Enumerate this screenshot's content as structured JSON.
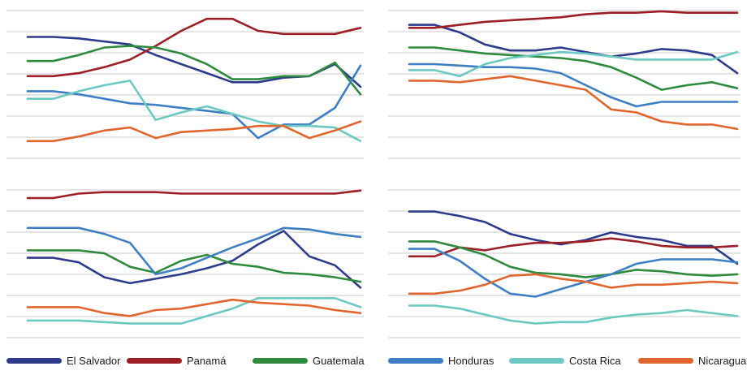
{
  "chart_data": [
    {
      "type": "line",
      "panel": "top-left",
      "ylim": [
        0,
        10
      ],
      "grid": true,
      "x": [
        1,
        2,
        3,
        4,
        5,
        6,
        7,
        8,
        9,
        10,
        11,
        12,
        13,
        14
      ],
      "series": [
        {
          "name": "El Salvador",
          "values": [
            8.2,
            8.2,
            8.1,
            7.9,
            7.7,
            7.0,
            6.4,
            5.8,
            5.2,
            5.2,
            5.5,
            5.6,
            6.4,
            4.9
          ]
        },
        {
          "name": "Panamá",
          "values": [
            5.6,
            5.6,
            5.8,
            6.2,
            6.7,
            7.6,
            8.6,
            9.4,
            9.4,
            8.6,
            8.4,
            8.4,
            8.4,
            8.8
          ]
        },
        {
          "name": "Guatemala",
          "values": [
            6.6,
            6.6,
            7.0,
            7.5,
            7.6,
            7.5,
            7.1,
            6.4,
            5.4,
            5.4,
            5.6,
            5.6,
            6.5,
            4.4
          ]
        },
        {
          "name": "Honduras",
          "values": [
            4.6,
            4.6,
            4.4,
            4.1,
            3.8,
            3.7,
            3.5,
            3.3,
            3.1,
            1.5,
            2.4,
            2.4,
            3.5,
            6.3
          ]
        },
        {
          "name": "Costa Rica",
          "values": [
            4.1,
            4.1,
            4.6,
            5.0,
            5.3,
            2.7,
            3.2,
            3.6,
            3.1,
            2.6,
            2.3,
            2.3,
            2.2,
            1.3
          ]
        },
        {
          "name": "Nicaragua",
          "values": [
            1.3,
            1.3,
            1.6,
            2.0,
            2.2,
            1.5,
            1.9,
            2.0,
            2.1,
            2.3,
            2.3,
            1.5,
            2.0,
            2.6
          ]
        }
      ]
    },
    {
      "type": "line",
      "panel": "top-right",
      "ylim": [
        0,
        10
      ],
      "grid": true,
      "x": [
        1,
        2,
        3,
        4,
        5,
        6,
        7,
        8,
        9,
        10,
        11,
        12,
        13,
        14
      ],
      "series": [
        {
          "name": "El Salvador",
          "values": [
            9.0,
            9.0,
            8.5,
            7.7,
            7.3,
            7.3,
            7.5,
            7.2,
            6.9,
            7.1,
            7.4,
            7.3,
            7.0,
            5.8
          ]
        },
        {
          "name": "Panamá",
          "values": [
            8.8,
            8.8,
            9.0,
            9.2,
            9.3,
            9.4,
            9.5,
            9.7,
            9.8,
            9.8,
            9.9,
            9.8,
            9.8,
            9.8
          ]
        },
        {
          "name": "Guatemala",
          "values": [
            7.5,
            7.5,
            7.3,
            7.1,
            7.0,
            6.9,
            6.8,
            6.6,
            6.2,
            5.5,
            4.7,
            5.0,
            5.2,
            4.8
          ]
        },
        {
          "name": "Honduras",
          "values": [
            6.4,
            6.4,
            6.3,
            6.2,
            6.2,
            6.1,
            5.8,
            5.0,
            4.2,
            3.6,
            3.9,
            3.9,
            3.9,
            3.9
          ]
        },
        {
          "name": "Costa Rica",
          "values": [
            6.0,
            6.0,
            5.6,
            6.4,
            6.8,
            7.0,
            7.2,
            7.1,
            6.9,
            6.7,
            6.7,
            6.7,
            6.7,
            7.2
          ]
        },
        {
          "name": "Nicaragua",
          "values": [
            5.3,
            5.3,
            5.2,
            5.4,
            5.6,
            5.3,
            5.0,
            4.7,
            3.4,
            3.2,
            2.6,
            2.4,
            2.4,
            2.1
          ]
        }
      ]
    },
    {
      "type": "line",
      "panel": "bottom-left",
      "ylim": [
        0,
        10
      ],
      "grid": true,
      "x": [
        1,
        2,
        3,
        4,
        5,
        6,
        7,
        8,
        9,
        10,
        11,
        12,
        13,
        14
      ],
      "series": [
        {
          "name": "El Salvador",
          "values": [
            5.4,
            5.4,
            5.1,
            4.1,
            3.7,
            4.0,
            4.3,
            4.7,
            5.2,
            6.3,
            7.2,
            5.5,
            4.9,
            3.4
          ]
        },
        {
          "name": "Panamá",
          "values": [
            9.4,
            9.4,
            9.7,
            9.8,
            9.8,
            9.8,
            9.7,
            9.7,
            9.7,
            9.7,
            9.7,
            9.7,
            9.7,
            9.9
          ]
        },
        {
          "name": "Guatemala",
          "values": [
            5.9,
            5.9,
            5.9,
            5.7,
            4.8,
            4.4,
            5.2,
            5.6,
            5.0,
            4.8,
            4.4,
            4.3,
            4.1,
            3.8
          ]
        },
        {
          "name": "Honduras",
          "values": [
            7.4,
            7.4,
            7.4,
            7.0,
            6.4,
            4.3,
            4.7,
            5.4,
            6.1,
            6.7,
            7.4,
            7.3,
            7.0,
            6.8
          ]
        },
        {
          "name": "Costa Rica",
          "values": [
            1.2,
            1.2,
            1.2,
            1.1,
            1.0,
            1.0,
            1.0,
            1.5,
            2.0,
            2.7,
            2.7,
            2.7,
            2.7,
            2.1
          ]
        },
        {
          "name": "Nicaragua",
          "values": [
            2.1,
            2.1,
            2.1,
            1.7,
            1.5,
            1.9,
            2.0,
            2.3,
            2.6,
            2.4,
            2.3,
            2.2,
            1.9,
            1.7
          ]
        }
      ]
    },
    {
      "type": "line",
      "panel": "bottom-right",
      "ylim": [
        0,
        10
      ],
      "grid": true,
      "x": [
        1,
        2,
        3,
        4,
        5,
        6,
        7,
        8,
        9,
        10,
        11,
        12,
        13,
        14
      ],
      "series": [
        {
          "name": "El Salvador",
          "values": [
            8.5,
            8.5,
            8.2,
            7.8,
            7.0,
            6.6,
            6.3,
            6.6,
            7.1,
            6.8,
            6.6,
            6.2,
            6.2,
            5.0
          ]
        },
        {
          "name": "Panamá",
          "values": [
            5.5,
            5.5,
            6.1,
            5.9,
            6.2,
            6.4,
            6.4,
            6.5,
            6.7,
            6.5,
            6.2,
            6.1,
            6.1,
            6.2
          ]
        },
        {
          "name": "Guatemala",
          "values": [
            6.5,
            6.5,
            6.1,
            5.6,
            4.8,
            4.4,
            4.3,
            4.1,
            4.3,
            4.6,
            4.5,
            4.3,
            4.2,
            4.3
          ]
        },
        {
          "name": "Honduras",
          "values": [
            6.0,
            6.0,
            5.2,
            4.0,
            3.0,
            2.8,
            3.3,
            3.8,
            4.3,
            5.0,
            5.3,
            5.3,
            5.3,
            5.1
          ]
        },
        {
          "name": "Costa Rica",
          "values": [
            2.2,
            2.2,
            2.0,
            1.6,
            1.2,
            1.0,
            1.1,
            1.1,
            1.4,
            1.6,
            1.7,
            1.9,
            1.7,
            1.5
          ]
        },
        {
          "name": "Nicaragua",
          "values": [
            3.0,
            3.0,
            3.2,
            3.6,
            4.2,
            4.3,
            4.0,
            3.8,
            3.4,
            3.6,
            3.6,
            3.7,
            3.8,
            3.7
          ]
        }
      ]
    }
  ],
  "legend": {
    "items": [
      {
        "name": "El Salvador",
        "color": "#2e3a8c"
      },
      {
        "name": "Panamá",
        "color": "#9b1f24"
      },
      {
        "name": "Guatemala",
        "color": "#2e8b3e"
      },
      {
        "name": "Honduras",
        "color": "#3d7fc2"
      },
      {
        "name": "Costa Rica",
        "color": "#6cc9c2"
      },
      {
        "name": "Nicaragua",
        "color": "#e0662e"
      }
    ]
  },
  "colors": {
    "grid": "#d4d4d4"
  }
}
